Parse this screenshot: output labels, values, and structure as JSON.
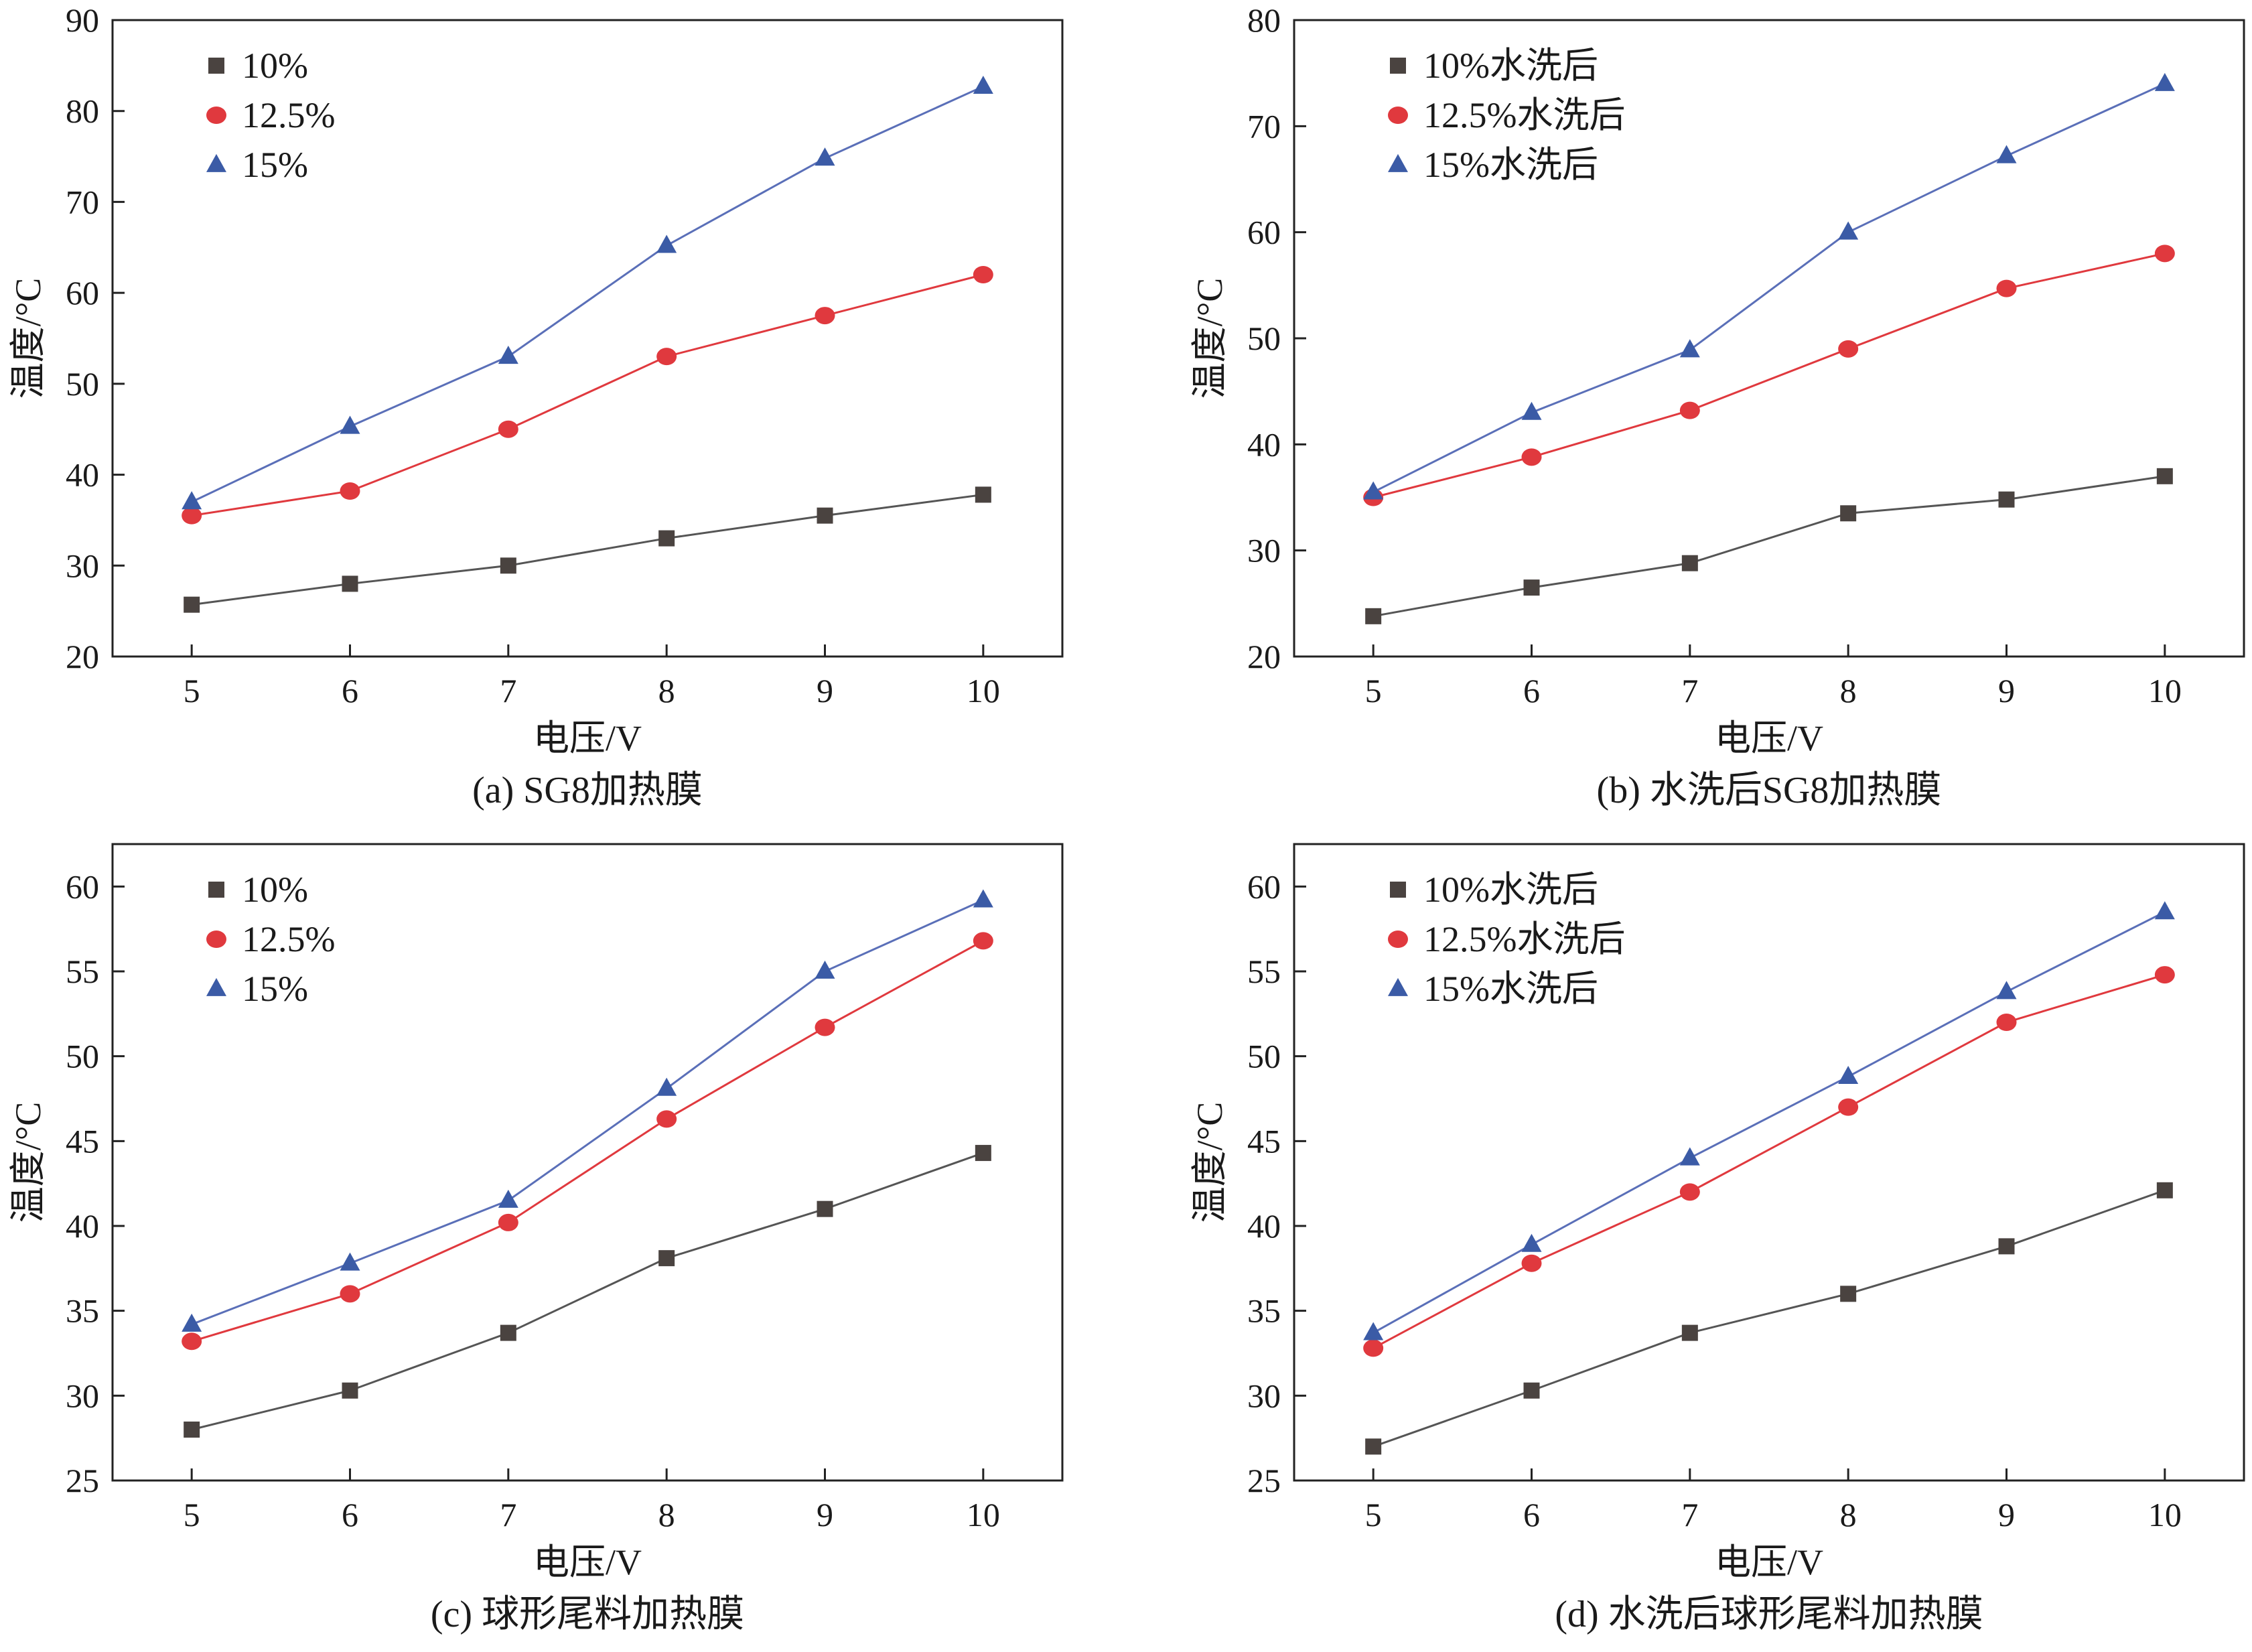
{
  "chart_data": [
    {
      "type": "line",
      "caption": "(a) SG8加热膜",
      "xlabel": "电压/V",
      "ylabel": "温度/°C",
      "x": [
        5,
        6,
        7,
        8,
        9,
        10
      ],
      "xticks": [
        "5",
        "6",
        "7",
        "8",
        "9",
        "10"
      ],
      "xlim": [
        4.5,
        10.5
      ],
      "ylim": [
        20,
        90
      ],
      "yticks": [
        "20",
        "30",
        "40",
        "50",
        "60",
        "70",
        "80",
        "90"
      ],
      "legend_position": "top-left",
      "series": [
        {
          "name": "10%",
          "marker": "square",
          "color": "#4a4340",
          "line_color": "#555555",
          "values": [
            25.7,
            28.0,
            30.0,
            33.0,
            35.5,
            37.8
          ]
        },
        {
          "name": "12.5%",
          "marker": "circle",
          "color": "#e0393e",
          "line_color": "#e0393e",
          "values": [
            35.5,
            38.2,
            45.0,
            53.0,
            57.5,
            62.0
          ]
        },
        {
          "name": "15%",
          "marker": "triangle",
          "color": "#3b5ba6",
          "line_color": "#5a6fb8",
          "values": [
            37.0,
            45.3,
            53.0,
            65.2,
            74.8,
            82.7
          ]
        }
      ]
    },
    {
      "type": "line",
      "caption": "(b) 水洗后SG8加热膜",
      "xlabel": "电压/V",
      "ylabel": "温度/°C",
      "x": [
        5,
        6,
        7,
        8,
        9,
        10
      ],
      "xticks": [
        "5",
        "6",
        "7",
        "8",
        "9",
        "10"
      ],
      "xlim": [
        4.5,
        10.5
      ],
      "ylim": [
        20,
        80
      ],
      "yticks": [
        "20",
        "30",
        "40",
        "50",
        "60",
        "70",
        "80"
      ],
      "legend_position": "top-left",
      "series": [
        {
          "name": "10%水洗后",
          "marker": "square",
          "color": "#4a4340",
          "line_color": "#555555",
          "values": [
            23.8,
            26.5,
            28.8,
            33.5,
            34.8,
            37.0
          ]
        },
        {
          "name": "12.5%水洗后",
          "marker": "circle",
          "color": "#e0393e",
          "line_color": "#e0393e",
          "values": [
            35.0,
            38.8,
            43.2,
            49.0,
            54.7,
            58.0
          ]
        },
        {
          "name": "15%水洗后",
          "marker": "triangle",
          "color": "#3b5ba6",
          "line_color": "#5a6fb8",
          "values": [
            35.5,
            43.0,
            48.9,
            60.0,
            67.2,
            74.0
          ]
        }
      ]
    },
    {
      "type": "line",
      "caption": "(c) 球形尾料加热膜",
      "xlabel": "电压/V",
      "ylabel": "温度/°C",
      "x": [
        5,
        6,
        7,
        8,
        9,
        10
      ],
      "xticks": [
        "5",
        "6",
        "7",
        "8",
        "9",
        "10"
      ],
      "xlim": [
        4.5,
        10.5
      ],
      "ylim": [
        25,
        62.5
      ],
      "yticks": [
        "25",
        "30",
        "35",
        "40",
        "45",
        "50",
        "55",
        "60"
      ],
      "legend_position": "top-left",
      "series": [
        {
          "name": "10%",
          "marker": "square",
          "color": "#4a4340",
          "line_color": "#555555",
          "values": [
            28.0,
            30.3,
            33.7,
            38.1,
            41.0,
            44.3
          ]
        },
        {
          "name": "12.5%",
          "marker": "circle",
          "color": "#e0393e",
          "line_color": "#e0393e",
          "values": [
            33.2,
            36.0,
            40.2,
            46.3,
            51.7,
            56.8
          ]
        },
        {
          "name": "15%",
          "marker": "triangle",
          "color": "#3b5ba6",
          "line_color": "#5a6fb8",
          "values": [
            34.2,
            37.8,
            41.5,
            48.1,
            55.0,
            59.2
          ]
        }
      ]
    },
    {
      "type": "line",
      "caption": "(d) 水洗后球形尾料加热膜",
      "xlabel": "电压/V",
      "ylabel": "温度/°C",
      "x": [
        5,
        6,
        7,
        8,
        9,
        10
      ],
      "xticks": [
        "5",
        "6",
        "7",
        "8",
        "9",
        "10"
      ],
      "xlim": [
        4.5,
        10.5
      ],
      "ylim": [
        25,
        62.5
      ],
      "yticks": [
        "25",
        "30",
        "35",
        "40",
        "45",
        "50",
        "55",
        "60"
      ],
      "legend_position": "top-left",
      "series": [
        {
          "name": "10%水洗后",
          "marker": "square",
          "color": "#4a4340",
          "line_color": "#555555",
          "values": [
            27.0,
            30.3,
            33.7,
            36.0,
            38.8,
            42.1
          ]
        },
        {
          "name": "12.5%水洗后",
          "marker": "circle",
          "color": "#e0393e",
          "line_color": "#e0393e",
          "values": [
            32.8,
            37.8,
            42.0,
            47.0,
            52.0,
            54.8
          ]
        },
        {
          "name": "15%水洗后",
          "marker": "triangle",
          "color": "#3b5ba6",
          "line_color": "#5a6fb8",
          "values": [
            33.7,
            38.9,
            44.0,
            48.8,
            53.8,
            58.5
          ]
        }
      ]
    }
  ]
}
